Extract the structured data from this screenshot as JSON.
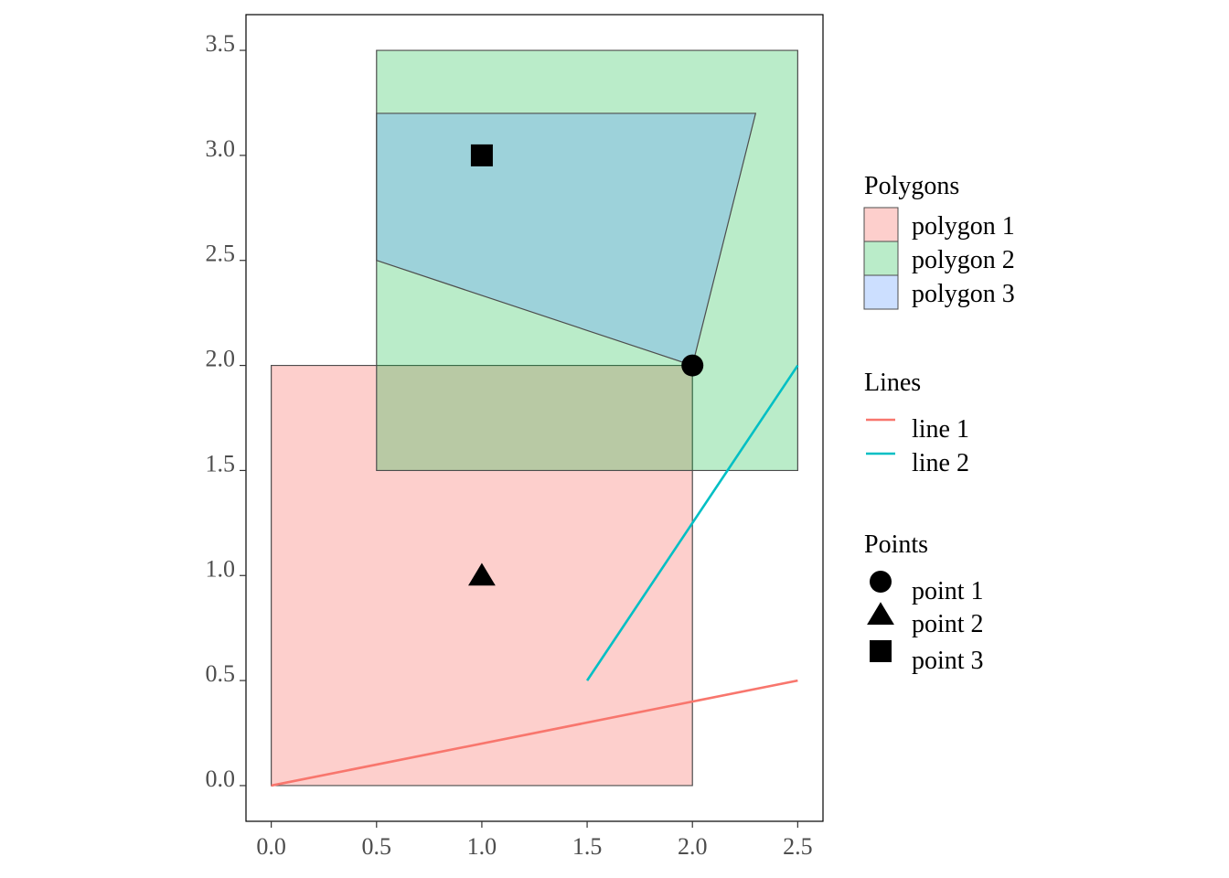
{
  "chart_data": {
    "type": "spatial",
    "xlim": [
      -0.12,
      2.62
    ],
    "ylim": [
      -0.17,
      3.67
    ],
    "x_ticks": [
      0.0,
      0.5,
      1.0,
      1.5,
      2.0,
      2.5
    ],
    "y_ticks": [
      0.0,
      0.5,
      1.0,
      1.5,
      2.0,
      2.5,
      3.0,
      3.5
    ],
    "x_tick_labels": [
      "0.0",
      "0.5",
      "1.0",
      "1.5",
      "2.0",
      "2.5"
    ],
    "y_tick_labels": [
      "0.0",
      "0.5",
      "1.0",
      "1.5",
      "2.0",
      "2.5",
      "3.0",
      "3.5"
    ],
    "grid": false,
    "legend_position": "right",
    "polygons": [
      {
        "name": "polygon 1",
        "color": "#F8766D",
        "alpha": 0.35,
        "coords": [
          [
            0,
            0
          ],
          [
            2,
            0
          ],
          [
            2,
            2
          ],
          [
            0,
            2
          ]
        ]
      },
      {
        "name": "polygon 2",
        "color": "#00BA38",
        "alpha": 0.27,
        "coords": [
          [
            0.5,
            1.5
          ],
          [
            2.5,
            1.5
          ],
          [
            2.5,
            3.5
          ],
          [
            0.5,
            3.5
          ]
        ]
      },
      {
        "name": "polygon 3",
        "color": "#619CFF",
        "alpha": 0.32,
        "coords": [
          [
            0.5,
            2.5
          ],
          [
            2,
            2
          ],
          [
            2.3,
            3.2
          ],
          [
            0.5,
            3.2
          ]
        ]
      }
    ],
    "lines": [
      {
        "name": "line 1",
        "color": "#F8766D",
        "coords": [
          [
            0,
            0
          ],
          [
            2.5,
            0.5
          ]
        ]
      },
      {
        "name": "line 2",
        "color": "#00BFC4",
        "coords": [
          [
            1.5,
            0.5
          ],
          [
            2.5,
            2
          ]
        ]
      }
    ],
    "points": [
      {
        "name": "point 1",
        "shape": "circle",
        "x": 2,
        "y": 2
      },
      {
        "name": "point 2",
        "shape": "triangle",
        "x": 1,
        "y": 1
      },
      {
        "name": "point 3",
        "shape": "square",
        "x": 1,
        "y": 3
      }
    ]
  },
  "legend": {
    "polygons_title": "Polygons",
    "lines_title": "Lines",
    "points_title": "Points"
  }
}
